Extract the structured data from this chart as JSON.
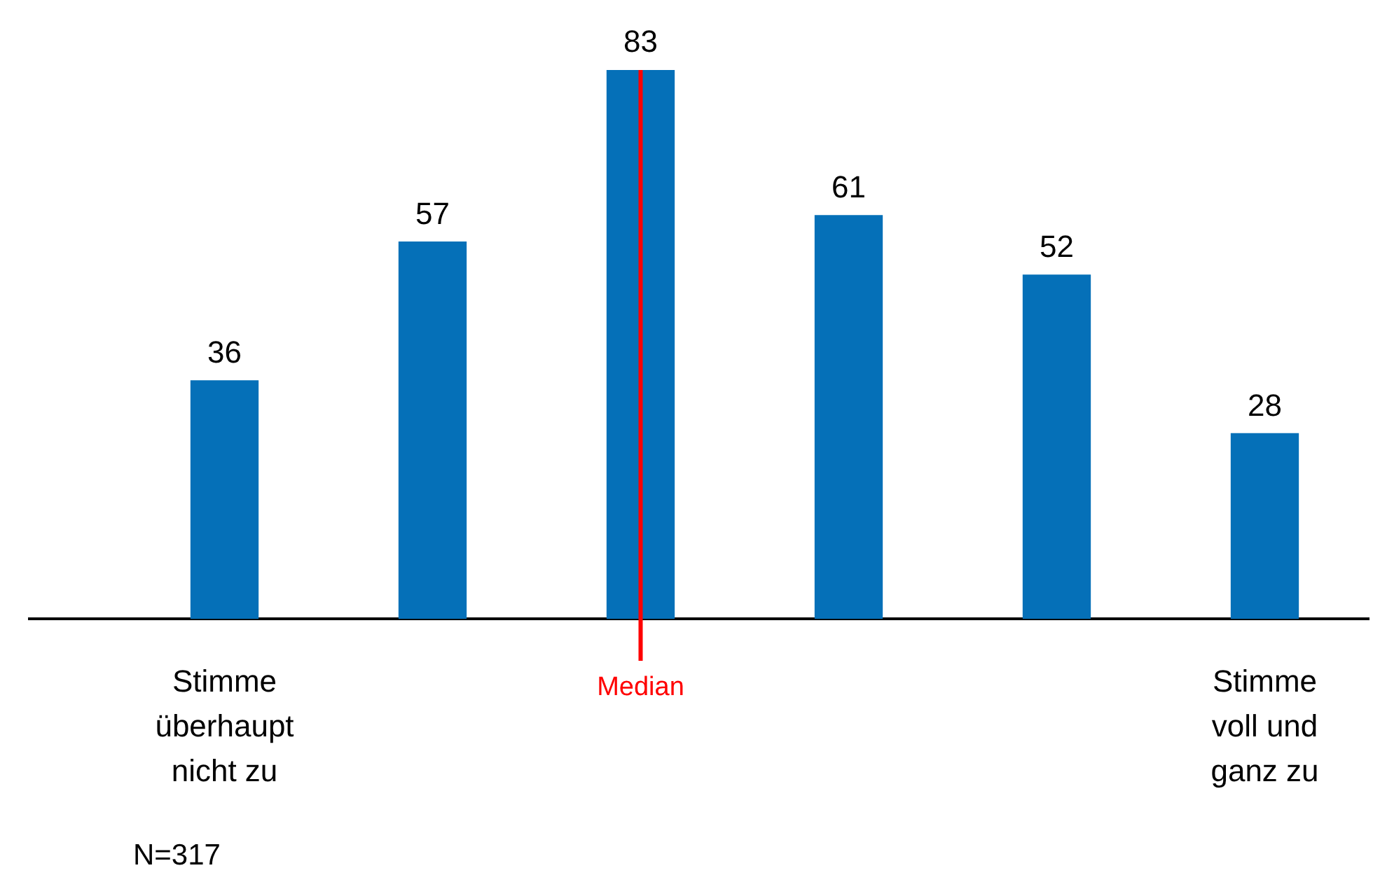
{
  "chart_data": {
    "type": "bar",
    "categories": [
      "Stimme überhaupt nicht zu",
      null,
      null,
      null,
      null,
      "Stimme voll und ganz zu"
    ],
    "values": [
      36,
      57,
      83,
      61,
      52,
      28
    ],
    "color": "#0570b8",
    "tick_labels": "x",
    "grid": false,
    "legend": false,
    "data_labels": true,
    "annotations": [
      "Median",
      "N=317"
    ]
  }
}
